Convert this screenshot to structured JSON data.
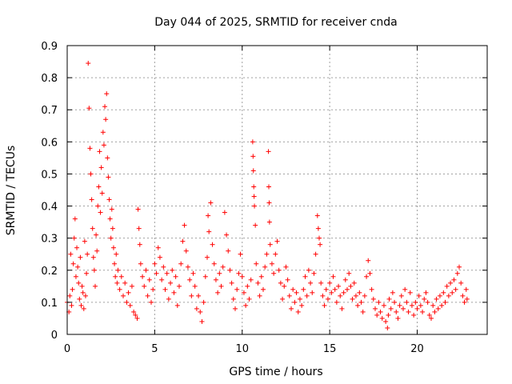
{
  "chart_data": {
    "type": "scatter",
    "title": "Day 044 of 2025, SRMTID for receiver cnda",
    "xlabel": "GPS time / hours",
    "ylabel": "SRMTID / TECUs",
    "xlim": [
      0,
      24
    ],
    "ylim": [
      0,
      0.9
    ],
    "xticks": [
      0,
      5,
      10,
      15,
      20
    ],
    "xtick_labels": [
      "0",
      "5",
      "10",
      "15",
      "20"
    ],
    "yticks": [
      0,
      0.1,
      0.2,
      0.3,
      0.4,
      0.5,
      0.6,
      0.7,
      0.8,
      0.9
    ],
    "ytick_labels": [
      "0",
      "0.1",
      "0.2",
      "0.3",
      "0.4",
      "0.5",
      "0.6",
      "0.7",
      "0.8",
      "0.9"
    ],
    "grid": true,
    "marker": "+",
    "series": [
      {
        "name": "SRMTID",
        "color": "#ff0000",
        "points": [
          [
            0.0,
            0.1
          ],
          [
            0.1,
            0.07
          ],
          [
            0.15,
            0.12
          ],
          [
            0.2,
            0.25
          ],
          [
            0.25,
            0.09
          ],
          [
            0.3,
            0.14
          ],
          [
            0.35,
            0.22
          ],
          [
            0.4,
            0.3
          ],
          [
            0.45,
            0.36
          ],
          [
            0.5,
            0.18
          ],
          [
            0.55,
            0.27
          ],
          [
            0.6,
            0.21
          ],
          [
            0.65,
            0.16
          ],
          [
            0.7,
            0.11
          ],
          [
            0.75,
            0.24
          ],
          [
            0.8,
            0.09
          ],
          [
            0.85,
            0.15
          ],
          [
            0.9,
            0.13
          ],
          [
            0.95,
            0.08
          ],
          [
            1.0,
            0.29
          ],
          [
            1.05,
            0.12
          ],
          [
            1.1,
            0.19
          ],
          [
            1.15,
            0.25
          ],
          [
            1.2,
            0.845
          ],
          [
            1.25,
            0.705
          ],
          [
            1.3,
            0.58
          ],
          [
            1.35,
            0.5
          ],
          [
            1.4,
            0.42
          ],
          [
            1.45,
            0.33
          ],
          [
            1.5,
            0.24
          ],
          [
            1.55,
            0.2
          ],
          [
            1.6,
            0.15
          ],
          [
            1.65,
            0.31
          ],
          [
            1.7,
            0.26
          ],
          [
            1.75,
            0.4
          ],
          [
            1.8,
            0.46
          ],
          [
            1.85,
            0.57
          ],
          [
            1.9,
            0.38
          ],
          [
            1.95,
            0.52
          ],
          [
            2.0,
            0.44
          ],
          [
            2.05,
            0.63
          ],
          [
            2.1,
            0.59
          ],
          [
            2.15,
            0.71
          ],
          [
            2.2,
            0.67
          ],
          [
            2.25,
            0.75
          ],
          [
            2.3,
            0.55
          ],
          [
            2.35,
            0.49
          ],
          [
            2.4,
            0.42
          ],
          [
            2.45,
            0.36
          ],
          [
            2.5,
            0.3
          ],
          [
            2.55,
            0.39
          ],
          [
            2.6,
            0.33
          ],
          [
            2.65,
            0.27
          ],
          [
            2.7,
            0.22
          ],
          [
            2.75,
            0.18
          ],
          [
            2.8,
            0.25
          ],
          [
            2.85,
            0.16
          ],
          [
            2.9,
            0.2
          ],
          [
            3.0,
            0.14
          ],
          [
            3.1,
            0.18
          ],
          [
            3.2,
            0.12
          ],
          [
            3.3,
            0.16
          ],
          [
            3.4,
            0.1
          ],
          [
            3.5,
            0.13
          ],
          [
            3.6,
            0.09
          ],
          [
            3.7,
            0.15
          ],
          [
            3.8,
            0.07
          ],
          [
            3.9,
            0.06
          ],
          [
            4.0,
            0.05
          ],
          [
            4.05,
            0.39
          ],
          [
            4.1,
            0.33
          ],
          [
            4.15,
            0.28
          ],
          [
            4.2,
            0.22
          ],
          [
            4.3,
            0.18
          ],
          [
            4.4,
            0.15
          ],
          [
            4.5,
            0.2
          ],
          [
            4.6,
            0.12
          ],
          [
            4.7,
            0.17
          ],
          [
            4.8,
            0.1
          ],
          [
            4.9,
            0.14
          ],
          [
            5.0,
            0.22
          ],
          [
            5.1,
            0.19
          ],
          [
            5.2,
            0.27
          ],
          [
            5.3,
            0.24
          ],
          [
            5.4,
            0.17
          ],
          [
            5.5,
            0.21
          ],
          [
            5.6,
            0.14
          ],
          [
            5.7,
            0.19
          ],
          [
            5.8,
            0.11
          ],
          [
            5.9,
            0.16
          ],
          [
            6.0,
            0.2
          ],
          [
            6.1,
            0.13
          ],
          [
            6.2,
            0.18
          ],
          [
            6.3,
            0.09
          ],
          [
            6.4,
            0.15
          ],
          [
            6.5,
            0.22
          ],
          [
            6.6,
            0.29
          ],
          [
            6.7,
            0.34
          ],
          [
            6.8,
            0.26
          ],
          [
            6.9,
            0.21
          ],
          [
            7.0,
            0.17
          ],
          [
            7.1,
            0.12
          ],
          [
            7.2,
            0.19
          ],
          [
            7.3,
            0.15
          ],
          [
            7.4,
            0.08
          ],
          [
            7.5,
            0.12
          ],
          [
            7.6,
            0.07
          ],
          [
            7.7,
            0.04
          ],
          [
            7.8,
            0.1
          ],
          [
            7.9,
            0.18
          ],
          [
            8.0,
            0.24
          ],
          [
            8.05,
            0.37
          ],
          [
            8.1,
            0.32
          ],
          [
            8.2,
            0.41
          ],
          [
            8.3,
            0.28
          ],
          [
            8.4,
            0.22
          ],
          [
            8.5,
            0.17
          ],
          [
            8.6,
            0.13
          ],
          [
            8.7,
            0.19
          ],
          [
            8.8,
            0.15
          ],
          [
            8.9,
            0.21
          ],
          [
            9.0,
            0.38
          ],
          [
            9.1,
            0.31
          ],
          [
            9.2,
            0.26
          ],
          [
            9.3,
            0.2
          ],
          [
            9.4,
            0.16
          ],
          [
            9.5,
            0.11
          ],
          [
            9.6,
            0.08
          ],
          [
            9.7,
            0.14
          ],
          [
            9.8,
            0.19
          ],
          [
            9.9,
            0.25
          ],
          [
            10.0,
            0.18
          ],
          [
            10.1,
            0.13
          ],
          [
            10.2,
            0.09
          ],
          [
            10.3,
            0.15
          ],
          [
            10.4,
            0.11
          ],
          [
            10.5,
            0.17
          ],
          [
            10.6,
            0.6
          ],
          [
            10.62,
            0.555
          ],
          [
            10.64,
            0.51
          ],
          [
            10.66,
            0.46
          ],
          [
            10.68,
            0.43
          ],
          [
            10.7,
            0.4
          ],
          [
            10.75,
            0.34
          ],
          [
            10.8,
            0.22
          ],
          [
            10.9,
            0.16
          ],
          [
            11.0,
            0.12
          ],
          [
            11.1,
            0.18
          ],
          [
            11.2,
            0.14
          ],
          [
            11.3,
            0.21
          ],
          [
            11.4,
            0.25
          ],
          [
            11.5,
            0.57
          ],
          [
            11.52,
            0.46
          ],
          [
            11.54,
            0.41
          ],
          [
            11.56,
            0.35
          ],
          [
            11.6,
            0.28
          ],
          [
            11.7,
            0.22
          ],
          [
            11.8,
            0.19
          ],
          [
            11.9,
            0.25
          ],
          [
            12.0,
            0.29
          ],
          [
            12.1,
            0.2
          ],
          [
            12.2,
            0.16
          ],
          [
            12.3,
            0.11
          ],
          [
            12.4,
            0.15
          ],
          [
            12.5,
            0.21
          ],
          [
            12.6,
            0.17
          ],
          [
            12.7,
            0.12
          ],
          [
            12.8,
            0.08
          ],
          [
            12.9,
            0.14
          ],
          [
            13.0,
            0.1
          ],
          [
            13.1,
            0.13
          ],
          [
            13.2,
            0.07
          ],
          [
            13.3,
            0.11
          ],
          [
            13.4,
            0.09
          ],
          [
            13.5,
            0.14
          ],
          [
            13.6,
            0.18
          ],
          [
            13.7,
            0.12
          ],
          [
            13.8,
            0.2
          ],
          [
            13.9,
            0.16
          ],
          [
            14.0,
            0.13
          ],
          [
            14.1,
            0.19
          ],
          [
            14.2,
            0.25
          ],
          [
            14.3,
            0.37
          ],
          [
            14.35,
            0.33
          ],
          [
            14.4,
            0.3
          ],
          [
            14.45,
            0.28
          ],
          [
            14.5,
            0.16
          ],
          [
            14.6,
            0.12
          ],
          [
            14.7,
            0.09
          ],
          [
            14.8,
            0.14
          ],
          [
            14.9,
            0.11
          ],
          [
            15.0,
            0.16
          ],
          [
            15.1,
            0.13
          ],
          [
            15.2,
            0.18
          ],
          [
            15.3,
            0.14
          ],
          [
            15.4,
            0.1
          ],
          [
            15.5,
            0.15
          ],
          [
            15.6,
            0.12
          ],
          [
            15.7,
            0.08
          ],
          [
            15.8,
            0.13
          ],
          [
            15.9,
            0.17
          ],
          [
            16.0,
            0.14
          ],
          [
            16.1,
            0.19
          ],
          [
            16.2,
            0.15
          ],
          [
            16.3,
            0.11
          ],
          [
            16.4,
            0.16
          ],
          [
            16.5,
            0.12
          ],
          [
            16.6,
            0.09
          ],
          [
            16.7,
            0.13
          ],
          [
            16.8,
            0.1
          ],
          [
            16.9,
            0.07
          ],
          [
            17.0,
            0.12
          ],
          [
            17.1,
            0.18
          ],
          [
            17.2,
            0.23
          ],
          [
            17.3,
            0.19
          ],
          [
            17.4,
            0.14
          ],
          [
            17.5,
            0.11
          ],
          [
            17.6,
            0.08
          ],
          [
            17.7,
            0.06
          ],
          [
            17.8,
            0.1
          ],
          [
            17.9,
            0.07
          ],
          [
            18.0,
            0.05
          ],
          [
            18.1,
            0.09
          ],
          [
            18.2,
            0.04
          ],
          [
            18.3,
            0.02
          ],
          [
            18.35,
            0.06
          ],
          [
            18.4,
            0.11
          ],
          [
            18.5,
            0.08
          ],
          [
            18.6,
            0.13
          ],
          [
            18.7,
            0.1
          ],
          [
            18.8,
            0.07
          ],
          [
            18.9,
            0.05
          ],
          [
            19.0,
            0.09
          ],
          [
            19.1,
            0.12
          ],
          [
            19.2,
            0.08
          ],
          [
            19.3,
            0.14
          ],
          [
            19.4,
            0.1
          ],
          [
            19.5,
            0.07
          ],
          [
            19.6,
            0.13
          ],
          [
            19.7,
            0.09
          ],
          [
            19.8,
            0.06
          ],
          [
            19.9,
            0.1
          ],
          [
            20.0,
            0.08
          ],
          [
            20.1,
            0.12
          ],
          [
            20.2,
            0.09
          ],
          [
            20.3,
            0.07
          ],
          [
            20.4,
            0.11
          ],
          [
            20.5,
            0.13
          ],
          [
            20.6,
            0.1
          ],
          [
            20.7,
            0.06
          ],
          [
            20.8,
            0.05
          ],
          [
            20.9,
            0.09
          ],
          [
            21.0,
            0.07
          ],
          [
            21.1,
            0.11
          ],
          [
            21.2,
            0.08
          ],
          [
            21.3,
            0.12
          ],
          [
            21.4,
            0.09
          ],
          [
            21.5,
            0.13
          ],
          [
            21.6,
            0.1
          ],
          [
            21.7,
            0.15
          ],
          [
            21.8,
            0.12
          ],
          [
            21.9,
            0.16
          ],
          [
            22.0,
            0.13
          ],
          [
            22.1,
            0.17
          ],
          [
            22.2,
            0.14
          ],
          [
            22.3,
            0.19
          ],
          [
            22.4,
            0.21
          ],
          [
            22.5,
            0.16
          ],
          [
            22.6,
            0.12
          ],
          [
            22.7,
            0.1
          ],
          [
            22.8,
            0.14
          ],
          [
            22.85,
            0.11
          ]
        ]
      }
    ]
  }
}
